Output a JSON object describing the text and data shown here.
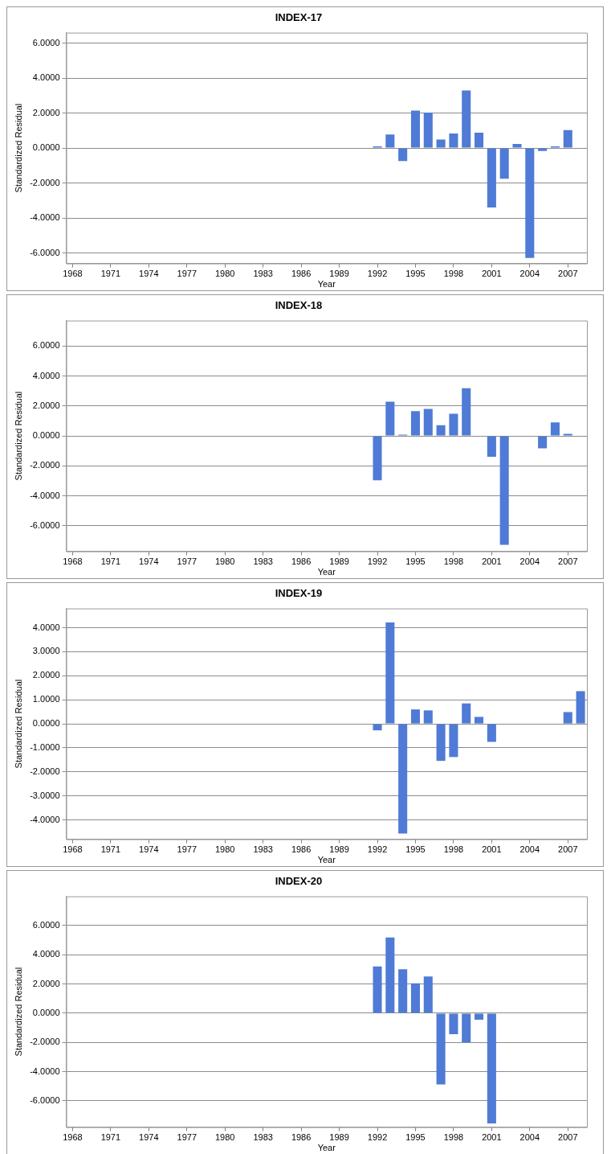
{
  "chart_data": [
    {
      "type": "bar",
      "title": "INDEX-17",
      "xlabel": "Year",
      "ylabel": "Standardized Residual",
      "grid": "y",
      "color": "#4f7bd6",
      "categories": [
        "1968",
        null,
        null,
        "1971",
        null,
        null,
        "1974",
        null,
        null,
        "1977",
        null,
        null,
        "1980",
        null,
        null,
        "1983",
        null,
        null,
        "1986",
        null,
        null,
        "1989",
        null,
        null,
        "1992",
        null,
        null,
        "1995",
        null,
        null,
        "1998",
        null,
        null,
        "2001",
        null,
        null,
        "2004",
        null,
        null,
        "2007",
        null
      ],
      "values": [
        0,
        0,
        0,
        0,
        0,
        0,
        0,
        0,
        0,
        0,
        0,
        0,
        0,
        0,
        0,
        0,
        0,
        0,
        0,
        0,
        0,
        0,
        0,
        0,
        0.1,
        0.77,
        -0.74,
        2.14,
        2.03,
        0.49,
        0.83,
        3.29,
        0.88,
        -3.4,
        -1.75,
        0.23,
        -6.28,
        -0.17,
        0.1,
        1.03,
        0
      ],
      "ylim": [
        -6.6,
        6.6
      ],
      "yticks": [
        {
          "value": -6,
          "label": "-6.0000"
        },
        {
          "value": -4,
          "label": "-4.0000"
        },
        {
          "value": -2,
          "label": "-2.0000"
        },
        {
          "value": 0,
          "label": "0.0000"
        },
        {
          "value": 2,
          "label": "2.0000"
        },
        {
          "value": 4,
          "label": "4.0000"
        },
        {
          "value": 6,
          "label": "6.0000"
        }
      ]
    },
    {
      "type": "bar",
      "title": "INDEX-18",
      "xlabel": "Year",
      "ylabel": "Standardized Residual",
      "grid": "y",
      "color": "#4f7bd6",
      "categories": [
        "1968",
        null,
        null,
        "1971",
        null,
        null,
        "1974",
        null,
        null,
        "1977",
        null,
        null,
        "1980",
        null,
        null,
        "1983",
        null,
        null,
        "1986",
        null,
        null,
        "1989",
        null,
        null,
        "1992",
        null,
        null,
        "1995",
        null,
        null,
        "1998",
        null,
        null,
        "2001",
        null,
        null,
        "2004",
        null,
        null,
        "2007",
        null
      ],
      "values": [
        0,
        0,
        0,
        0,
        0,
        0,
        0,
        0,
        0,
        0,
        0,
        0,
        0,
        0,
        0,
        0,
        0,
        0,
        0,
        0,
        0,
        0,
        0,
        0,
        -2.96,
        2.29,
        0.09,
        1.66,
        1.8,
        0.72,
        1.48,
        3.18,
        0,
        -1.39,
        -7.26,
        0,
        0,
        -0.83,
        0.9,
        0.14,
        0
      ],
      "ylim": [
        -7.7,
        7.7
      ],
      "yticks": [
        {
          "value": -6,
          "label": "-6.0000"
        },
        {
          "value": -4,
          "label": "-4.0000"
        },
        {
          "value": -2,
          "label": "-2.0000"
        },
        {
          "value": 0,
          "label": "0.0000"
        },
        {
          "value": 2,
          "label": "2.0000"
        },
        {
          "value": 4,
          "label": "4.0000"
        },
        {
          "value": 6,
          "label": "6.0000"
        }
      ]
    },
    {
      "type": "bar",
      "title": "INDEX-19",
      "xlabel": "Year",
      "ylabel": "Standardized Residual",
      "grid": "y",
      "color": "#4f7bd6",
      "categories": [
        "1968",
        null,
        null,
        "1971",
        null,
        null,
        "1974",
        null,
        null,
        "1977",
        null,
        null,
        "1980",
        null,
        null,
        "1983",
        null,
        null,
        "1986",
        null,
        null,
        "1989",
        null,
        null,
        "1992",
        null,
        null,
        "1995",
        null,
        null,
        "1998",
        null,
        null,
        "2001",
        null,
        null,
        "2004",
        null,
        null,
        "2007",
        null
      ],
      "values": [
        0,
        0,
        0,
        0,
        0,
        0,
        0,
        0,
        0,
        0,
        0,
        0,
        0,
        0,
        0,
        0,
        0,
        0,
        0,
        0,
        0,
        0,
        0,
        0,
        -0.27,
        4.22,
        -4.56,
        0.6,
        0.56,
        -1.54,
        -1.38,
        0.85,
        0.29,
        -0.75,
        0,
        0,
        0,
        0,
        0,
        0.49,
        1.36
      ],
      "ylim": [
        -4.8,
        4.8
      ],
      "yticks": [
        {
          "value": -4,
          "label": "-4.0000"
        },
        {
          "value": -3,
          "label": "-3.0000"
        },
        {
          "value": -2,
          "label": "-2.0000"
        },
        {
          "value": -1,
          "label": "-1.0000"
        },
        {
          "value": 0,
          "label": "0.0000"
        },
        {
          "value": 1,
          "label": "1.0000"
        },
        {
          "value": 2,
          "label": "2.0000"
        },
        {
          "value": 3,
          "label": "3.0000"
        },
        {
          "value": 4,
          "label": "4.0000"
        }
      ]
    },
    {
      "type": "bar",
      "title": "INDEX-20",
      "xlabel": "Year",
      "ylabel": "Standardized Residual",
      "grid": "y",
      "color": "#4f7bd6",
      "categories": [
        "1968",
        null,
        null,
        "1971",
        null,
        null,
        "1974",
        null,
        null,
        "1977",
        null,
        null,
        "1980",
        null,
        null,
        "1983",
        null,
        null,
        "1986",
        null,
        null,
        "1989",
        null,
        null,
        "1992",
        null,
        null,
        "1995",
        null,
        null,
        "1998",
        null,
        null,
        "2001",
        null,
        null,
        "2004",
        null,
        null,
        "2007",
        null
      ],
      "values": [
        0,
        0,
        0,
        0,
        0,
        0,
        0,
        0,
        0,
        0,
        0,
        0,
        0,
        0,
        0,
        0,
        0,
        0,
        0,
        0,
        0,
        0,
        0,
        0,
        3.2,
        5.19,
        3.01,
        2.04,
        2.51,
        -4.87,
        -1.44,
        -1.99,
        -0.45,
        -7.55,
        0,
        0,
        0,
        0,
        0,
        0,
        0
      ],
      "ylim": [
        -7.8,
        8
      ],
      "yticks": [
        {
          "value": -6,
          "label": "-6.0000"
        },
        {
          "value": -4,
          "label": "-4.0000"
        },
        {
          "value": -2,
          "label": "-2.0000"
        },
        {
          "value": 0,
          "label": "0.0000"
        },
        {
          "value": 2,
          "label": "2.0000"
        },
        {
          "value": 4,
          "label": "4.0000"
        },
        {
          "value": 6,
          "label": "6.0000"
        }
      ]
    }
  ]
}
